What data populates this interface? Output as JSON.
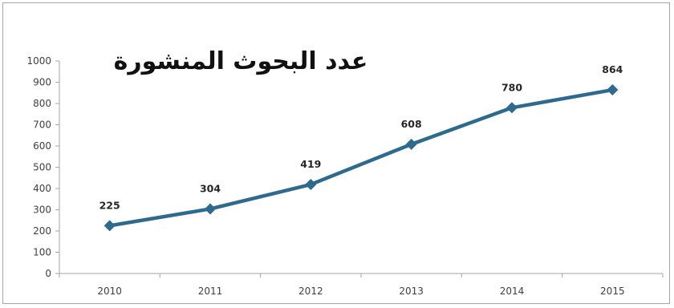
{
  "chart_data": {
    "type": "line",
    "title": "عدد البحوث المنشورة",
    "xlabel": "",
    "ylabel": "",
    "categories": [
      "2010",
      "2011",
      "2012",
      "2013",
      "2014",
      "2015"
    ],
    "series": [
      {
        "values": [
          225,
          304,
          419,
          608,
          780,
          864
        ]
      }
    ],
    "ylim": [
      0,
      1000
    ],
    "yticks": [
      "0",
      "100",
      "200",
      "300",
      "400",
      "500",
      "600",
      "700",
      "800",
      "900",
      "1000"
    ],
    "grid": false,
    "legend": "none",
    "data_labels": true,
    "colors": {
      "series": "#2e6a8e",
      "axis": "#a6a6a6",
      "frame": "#a6a6a6"
    }
  }
}
